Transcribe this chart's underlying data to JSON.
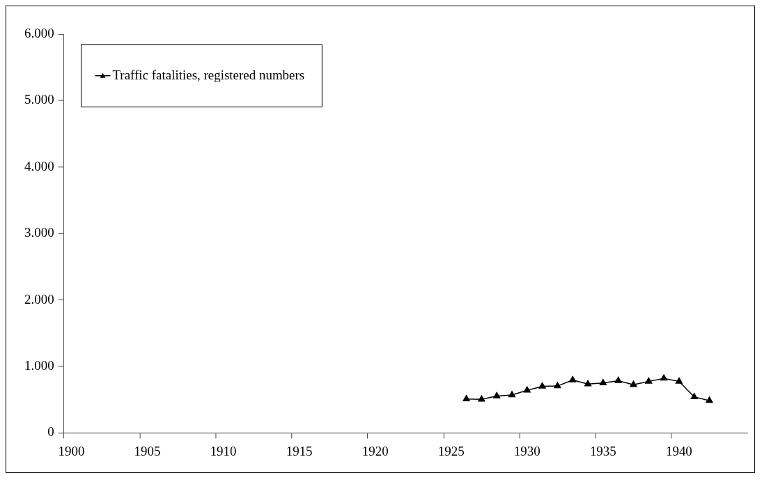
{
  "chart_data": {
    "type": "line",
    "categories": [
      "1900",
      null,
      null,
      null,
      null,
      "1905",
      null,
      null,
      null,
      null,
      "1910",
      null,
      null,
      null,
      null,
      "1915",
      null,
      null,
      null,
      null,
      "1920",
      null,
      null,
      null,
      null,
      "1925",
      null,
      null,
      null,
      null,
      "1930",
      null,
      null,
      null,
      null,
      "1935",
      null,
      null,
      null,
      null,
      "1940",
      null,
      null,
      null,
      null
    ],
    "series": [
      {
        "name": "Traffic fatalities, registered numbers",
        "color": "#000000",
        "values": [
          null,
          null,
          null,
          null,
          null,
          null,
          null,
          null,
          null,
          null,
          null,
          null,
          null,
          null,
          null,
          null,
          null,
          null,
          null,
          null,
          null,
          null,
          null,
          null,
          null,
          null,
          510,
          505,
          555,
          570,
          640,
          700,
          705,
          795,
          735,
          750,
          785,
          725,
          775,
          820,
          775,
          540,
          485,
          null,
          null
        ]
      }
    ],
    "ylim": [
      0,
      6000
    ],
    "yticks": [
      0,
      {
        "value": 1000,
        "label": "1.000"
      },
      {
        "value": 2000,
        "label": "2.000"
      },
      {
        "value": 3000,
        "label": "3.000"
      },
      {
        "value": 4000,
        "label": "4.000"
      },
      {
        "value": 5000,
        "label": "5.000"
      },
      {
        "value": 6000,
        "label": "6.000"
      }
    ],
    "grid": false,
    "legend": "top left",
    "marker": "triangle",
    "line_style": "solid"
  }
}
